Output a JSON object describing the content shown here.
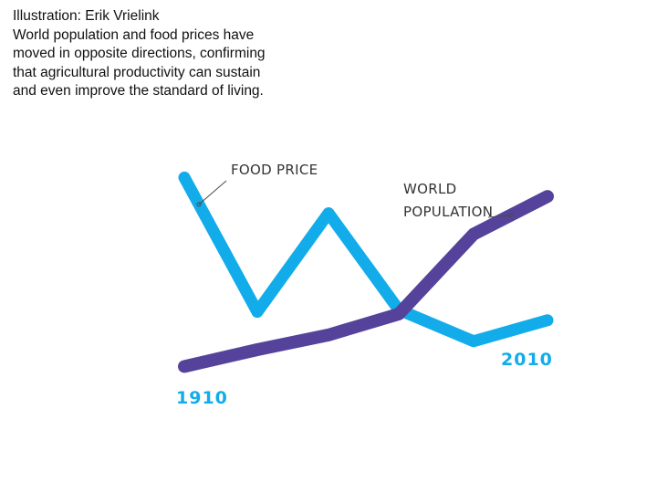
{
  "caption": {
    "credit": "Illustration: Erik Vrielink",
    "lines": [
      "World population and food prices have",
      "moved in opposite directions, confirming",
      "that agricultural productivity can sustain",
      "and even improve the standard of living."
    ]
  },
  "chart_data": {
    "type": "line",
    "x": [
      0,
      1,
      2,
      3,
      4,
      5
    ],
    "x_start_label": "1910",
    "x_end_label": "2010",
    "ylim": [
      0,
      100
    ],
    "grid": false,
    "legend": "none",
    "series": [
      {
        "name": "FOOD PRICE",
        "label_lines": [
          "FOOD PRICE"
        ],
        "color": "#13acea",
        "values": [
          92,
          28,
          75,
          29,
          14,
          24
        ]
      },
      {
        "name": "WORLD POPULATION",
        "label_lines": [
          "WORLD",
          "POPULATION"
        ],
        "color": "#55439b",
        "values": [
          2,
          10,
          17,
          27,
          65,
          83
        ]
      }
    ],
    "label_color": "#333333",
    "year_color": "#13acea",
    "connector_color": "#4a4a4a"
  }
}
